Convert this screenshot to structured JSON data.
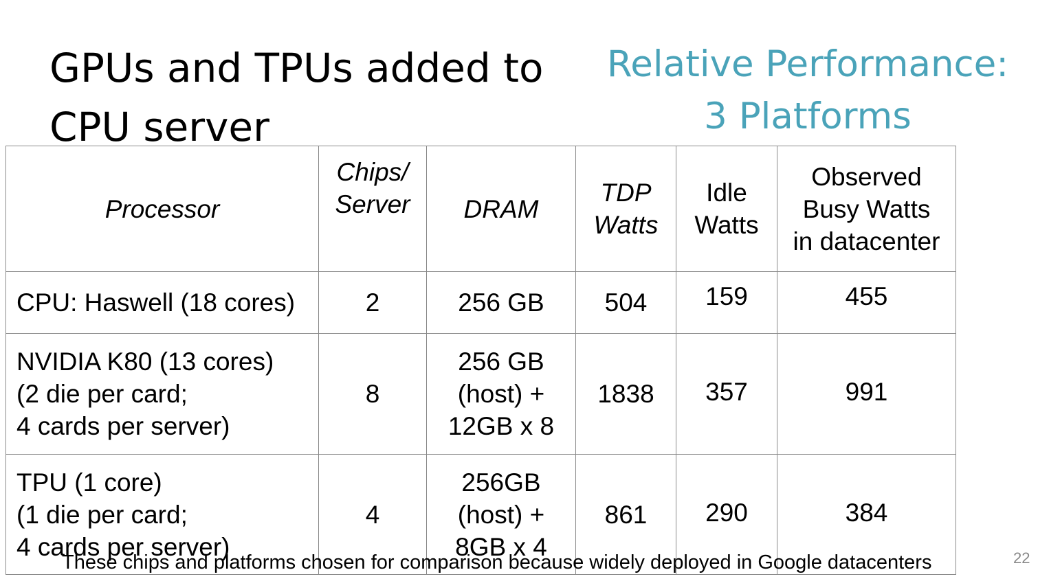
{
  "title": {
    "line1": "GPUs and TPUs added to",
    "line2": "CPU server"
  },
  "subtitle": {
    "line1": "Relative Performance:",
    "line2": "3 Platforms"
  },
  "table": {
    "headers": {
      "processor": "Processor",
      "chips_line1": "Chips/",
      "chips_line2": "Server",
      "dram": "DRAM",
      "tdp_line1": "TDP",
      "tdp_line2": "Watts",
      "idle_line1": "Idle",
      "idle_line2": "Watts",
      "busy_line1": "Observed",
      "busy_line2": "Busy Watts",
      "busy_line3": "in datacenter"
    },
    "rows": [
      {
        "processor": [
          "CPU: Haswell (18 cores)"
        ],
        "chips": "2",
        "dram": [
          "256 GB"
        ],
        "tdp": "504",
        "idle": "159",
        "busy": "455"
      },
      {
        "processor": [
          "NVIDIA K80 (13 cores)",
          "(2 die per card;",
          "4 cards per server)"
        ],
        "chips": "8",
        "dram": [
          "256 GB",
          "(host) +",
          "12GB x 8"
        ],
        "tdp": "1838",
        "idle": "357",
        "busy": "991"
      },
      {
        "processor": [
          "TPU (1 core)",
          "(1 die per card;",
          "4 cards per server)"
        ],
        "chips": "4",
        "dram": [
          "256GB",
          "(host) +",
          "8GB x 4"
        ],
        "tdp": "861",
        "idle": "290",
        "busy": "384"
      }
    ]
  },
  "footer": "These chips and platforms chosen for comparison because widely deployed in Google datacenters",
  "page_number": "22",
  "colors": {
    "subtitle": "#4aa3b9",
    "border": "#888888"
  }
}
